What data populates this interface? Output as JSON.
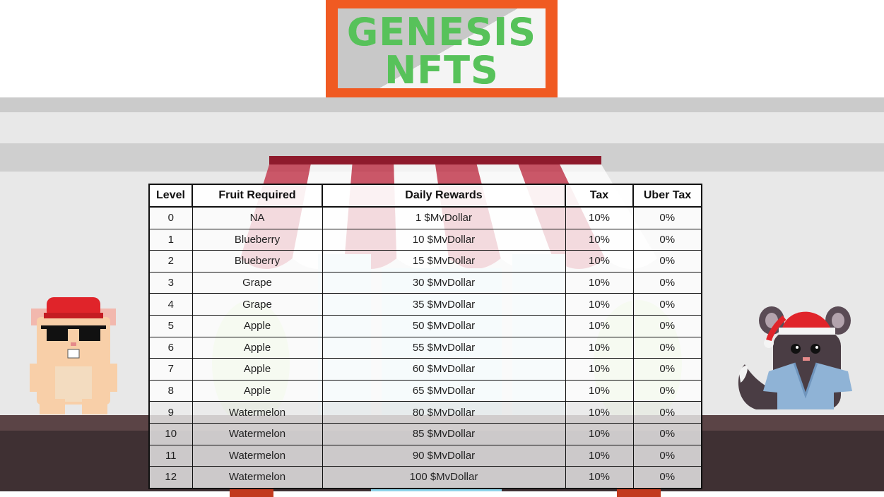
{
  "sign": {
    "line1": "GENESIS",
    "line2": "NFTS"
  },
  "table": {
    "headers": [
      "Level",
      "Fruit Required",
      "Daily Rewards",
      "Tax",
      "Uber Tax"
    ],
    "rows": [
      [
        "0",
        "NA",
        "1 $MvDollar",
        "10%",
        "0%"
      ],
      [
        "1",
        "Blueberry",
        "10 $MvDollar",
        "10%",
        "0%"
      ],
      [
        "2",
        "Blueberry",
        "15 $MvDollar",
        "10%",
        "0%"
      ],
      [
        "3",
        "Grape",
        "30 $MvDollar",
        "10%",
        "0%"
      ],
      [
        "4",
        "Grape",
        "35 $MvDollar",
        "10%",
        "0%"
      ],
      [
        "5",
        "Apple",
        "50 $MvDollar",
        "10%",
        "0%"
      ],
      [
        "6",
        "Apple",
        "55 $MvDollar",
        "10%",
        "0%"
      ],
      [
        "7",
        "Apple",
        "60 $MvDollar",
        "10%",
        "0%"
      ],
      [
        "8",
        "Apple",
        "65 $MvDollar",
        "10%",
        "0%"
      ],
      [
        "9",
        "Watermelon",
        "80 $MvDollar",
        "10%",
        "0%"
      ],
      [
        "10",
        "Watermelon",
        "85 $MvDollar",
        "10%",
        "0%"
      ],
      [
        "11",
        "Watermelon",
        "90 $MvDollar",
        "10%",
        "0%"
      ],
      [
        "12",
        "Watermelon",
        "100 $MvDollar",
        "10%",
        "0%"
      ]
    ]
  },
  "colors": {
    "sign_frame": "#f05a22",
    "sign_text": "#57c25a",
    "awning_red": "#c0273e",
    "floor": "#3f3033"
  },
  "icons": {
    "left_character": "hamster-character-icon",
    "right_character": "chinchilla-character-icon"
  }
}
